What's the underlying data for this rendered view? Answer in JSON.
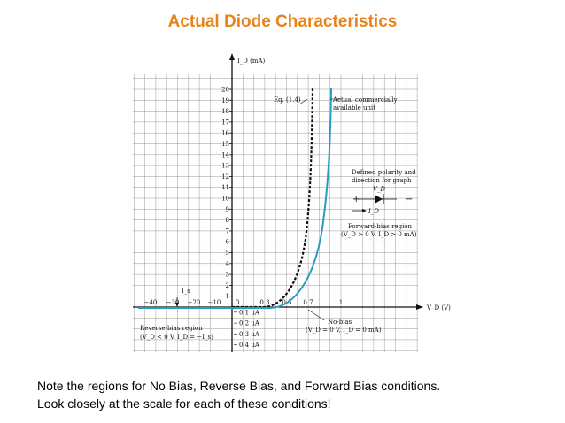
{
  "title": "Actual Diode Characteristics",
  "figure": {
    "y_axis_label": "I_D (mA)",
    "x_axis_label": "V_D (V)",
    "y_ticks": [
      "1",
      "2",
      "3",
      "4",
      "5",
      "6",
      "7",
      "8",
      "9",
      "10",
      "11",
      "12",
      "13",
      "14",
      "15",
      "16",
      "17",
      "18",
      "19",
      "20"
    ],
    "x_ticks_negative": [
      "−40",
      "−30",
      "−20",
      "−10"
    ],
    "origin_label": "0",
    "x_ticks_positive": [
      "0.3",
      "0.5",
      "0.7",
      "1"
    ],
    "reverse_current_ticks": [
      "0.1 μA",
      "0.2 μA",
      "0.3 μA",
      "0.4 μA"
    ],
    "labels": {
      "eq": "Eq. (1.4)",
      "actual_line1": "Actual commercially",
      "actual_line2": "available unit",
      "polarity_line1": "Defined polarity and",
      "polarity_line2": "direction for graph",
      "plus": "+",
      "minus": "−",
      "vd": "V_D",
      "id": "I_D",
      "forward_line1": "Forward-bias region",
      "forward_line2": "(V_D > 0 V, I_D > 0 mA)",
      "nobias_line1": "No-bias",
      "nobias_line2": "(V_D = 0 V, I_D = 0 mA)",
      "reverse_line1": "Reverse-bias region",
      "reverse_line2": "(V_D < 0 V, I_D = −I_s)",
      "is": "I_s"
    },
    "colors": {
      "actual_curve": "#2a9cc0",
      "eq_curve": "#111111",
      "grid": "#9a9a9a"
    }
  },
  "note": {
    "line1": "Note the regions for No Bias, Reverse Bias, and Forward Bias conditions.",
    "line2": "Look closely at the scale for each of these conditions!"
  }
}
